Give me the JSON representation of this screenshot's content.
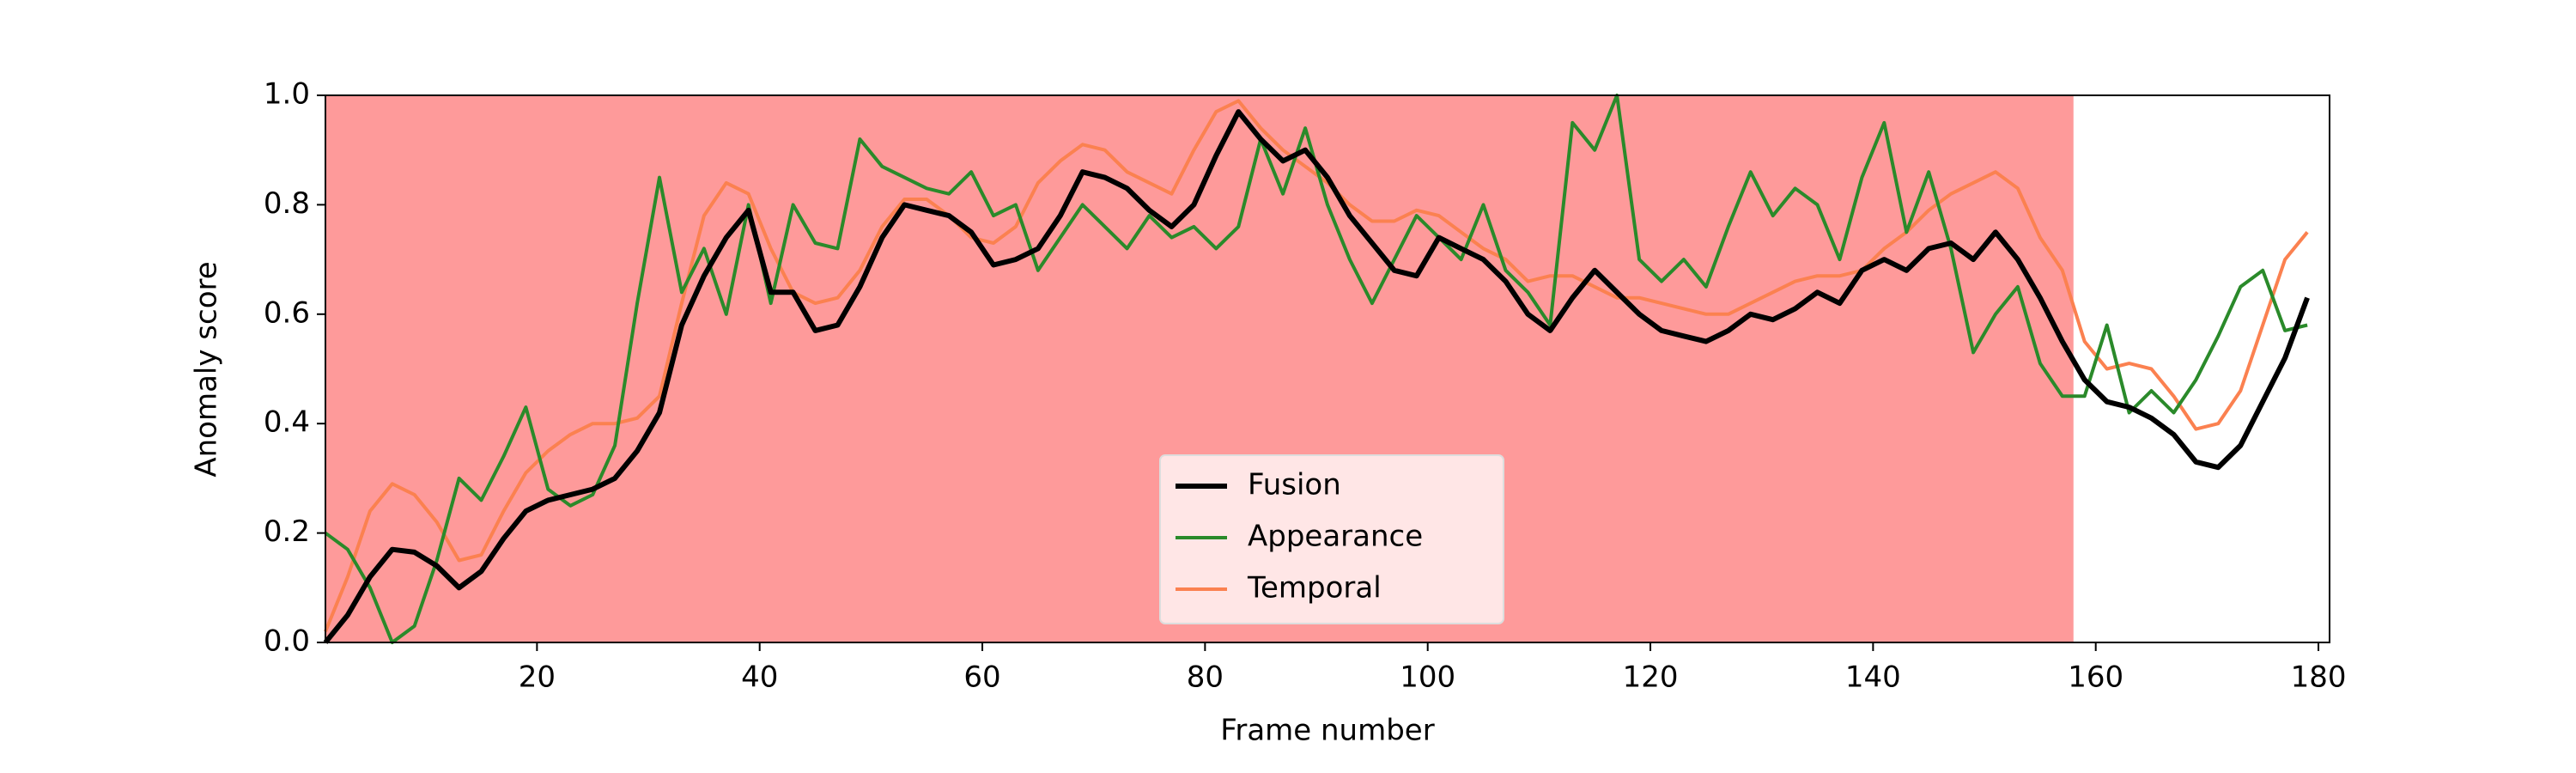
{
  "chart_data": {
    "type": "line",
    "x_label": "Frame number",
    "y_label": "Anomaly score",
    "xlim": [
      1,
      181
    ],
    "ylim": [
      0,
      1
    ],
    "xticks": [
      20,
      40,
      60,
      80,
      100,
      120,
      140,
      160,
      180
    ],
    "yticks": [
      {
        "value": 0,
        "label": "0.0"
      },
      {
        "value": 0.2,
        "label": "0.2"
      },
      {
        "value": 0.4,
        "label": "0.4"
      },
      {
        "value": 0.6,
        "label": "0.6"
      },
      {
        "value": 0.8,
        "label": "0.8"
      },
      {
        "value": 1,
        "label": "1.0"
      }
    ],
    "highlight": {
      "xrange": [
        1,
        158
      ],
      "color": "#fe9a9a"
    },
    "legend": "lower center",
    "x": [
      1,
      3,
      5,
      7,
      9,
      11,
      13,
      15,
      17,
      19,
      21,
      23,
      25,
      27,
      29,
      31,
      33,
      35,
      37,
      39,
      41,
      43,
      45,
      47,
      49,
      51,
      53,
      55,
      57,
      59,
      61,
      63,
      65,
      67,
      69,
      71,
      73,
      75,
      77,
      79,
      81,
      83,
      85,
      87,
      89,
      91,
      93,
      95,
      97,
      99,
      101,
      103,
      105,
      107,
      109,
      111,
      113,
      115,
      117,
      119,
      121,
      123,
      125,
      127,
      129,
      131,
      133,
      135,
      137,
      139,
      141,
      143,
      145,
      147,
      149,
      151,
      153,
      155,
      157,
      159,
      161,
      163,
      165,
      167,
      169,
      171,
      173,
      175,
      177,
      179
    ],
    "series": [
      {
        "name": "Fusion",
        "color": "#000000",
        "width": 6,
        "values": [
          0.0,
          0.05,
          0.12,
          0.17,
          0.165,
          0.14,
          0.1,
          0.13,
          0.19,
          0.24,
          0.26,
          0.27,
          0.28,
          0.3,
          0.35,
          0.42,
          0.58,
          0.67,
          0.74,
          0.79,
          0.64,
          0.64,
          0.57,
          0.58,
          0.65,
          0.74,
          0.8,
          0.79,
          0.78,
          0.75,
          0.69,
          0.7,
          0.72,
          0.78,
          0.86,
          0.85,
          0.83,
          0.79,
          0.76,
          0.8,
          0.89,
          0.97,
          0.92,
          0.88,
          0.9,
          0.85,
          0.78,
          0.73,
          0.68,
          0.67,
          0.74,
          0.72,
          0.7,
          0.66,
          0.6,
          0.57,
          0.63,
          0.68,
          0.64,
          0.6,
          0.57,
          0.56,
          0.55,
          0.57,
          0.6,
          0.59,
          0.61,
          0.64,
          0.62,
          0.68,
          0.7,
          0.68,
          0.72,
          0.73,
          0.7,
          0.75,
          0.7,
          0.63,
          0.55,
          0.48,
          0.44,
          0.43,
          0.41,
          0.38,
          0.33,
          0.32,
          0.36,
          0.44,
          0.52,
          0.63
        ]
      },
      {
        "name": "Appearance",
        "color": "#2a8a2a",
        "width": 4,
        "values": [
          0.2,
          0.17,
          0.1,
          0.0,
          0.03,
          0.15,
          0.3,
          0.26,
          0.34,
          0.43,
          0.28,
          0.25,
          0.27,
          0.36,
          0.62,
          0.85,
          0.64,
          0.72,
          0.6,
          0.8,
          0.62,
          0.8,
          0.73,
          0.72,
          0.92,
          0.87,
          0.85,
          0.83,
          0.82,
          0.86,
          0.78,
          0.8,
          0.68,
          0.74,
          0.8,
          0.76,
          0.72,
          0.78,
          0.74,
          0.76,
          0.72,
          0.76,
          0.92,
          0.82,
          0.94,
          0.8,
          0.7,
          0.62,
          0.7,
          0.78,
          0.74,
          0.7,
          0.8,
          0.68,
          0.64,
          0.58,
          0.95,
          0.9,
          1.0,
          0.7,
          0.66,
          0.7,
          0.65,
          0.76,
          0.86,
          0.78,
          0.83,
          0.8,
          0.7,
          0.85,
          0.95,
          0.75,
          0.86,
          0.72,
          0.53,
          0.6,
          0.65,
          0.51,
          0.45,
          0.45,
          0.58,
          0.42,
          0.46,
          0.42,
          0.48,
          0.56,
          0.65,
          0.68,
          0.57,
          0.58
        ]
      },
      {
        "name": "Temporal",
        "color": "#fb8150",
        "width": 4,
        "values": [
          0.02,
          0.12,
          0.24,
          0.29,
          0.27,
          0.22,
          0.15,
          0.16,
          0.24,
          0.31,
          0.35,
          0.38,
          0.4,
          0.4,
          0.41,
          0.45,
          0.62,
          0.78,
          0.84,
          0.82,
          0.72,
          0.64,
          0.62,
          0.63,
          0.68,
          0.76,
          0.81,
          0.81,
          0.78,
          0.74,
          0.73,
          0.76,
          0.84,
          0.88,
          0.91,
          0.9,
          0.86,
          0.84,
          0.82,
          0.9,
          0.97,
          0.99,
          0.94,
          0.9,
          0.87,
          0.84,
          0.8,
          0.77,
          0.77,
          0.79,
          0.78,
          0.75,
          0.72,
          0.7,
          0.66,
          0.67,
          0.67,
          0.65,
          0.63,
          0.63,
          0.62,
          0.61,
          0.6,
          0.6,
          0.62,
          0.64,
          0.66,
          0.67,
          0.67,
          0.68,
          0.72,
          0.75,
          0.79,
          0.82,
          0.84,
          0.86,
          0.83,
          0.74,
          0.68,
          0.55,
          0.5,
          0.51,
          0.5,
          0.45,
          0.39,
          0.4,
          0.46,
          0.58,
          0.7,
          0.75
        ]
      }
    ]
  }
}
